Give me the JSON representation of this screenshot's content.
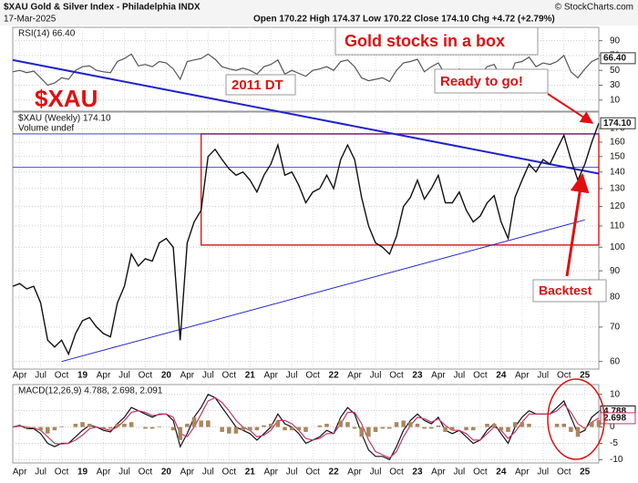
{
  "chart_data": [
    {
      "type": "line",
      "ylim": [
        -5,
        108
      ],
      "yticks": [
        90,
        70,
        50,
        30,
        10
      ],
      "grid": true,
      "last_label": "66.40",
      "series": [
        {
          "name": "RSI(14) 66.40",
          "color": "#555555",
          "values": [
            48,
            50,
            47,
            49,
            40,
            30,
            33,
            40,
            38,
            50,
            55,
            56,
            50,
            48,
            47,
            62,
            66,
            72,
            56,
            58,
            55,
            62,
            60,
            52,
            38,
            62,
            64,
            66,
            72,
            65,
            55,
            52,
            50,
            53,
            50,
            45,
            55,
            58,
            64,
            45,
            50,
            46,
            42,
            50,
            52,
            55,
            50,
            62,
            64,
            55,
            40,
            36,
            38,
            40,
            35,
            50,
            60,
            62,
            65,
            48,
            55,
            60,
            44,
            45,
            52,
            42,
            40,
            45,
            55,
            58,
            40,
            35,
            60,
            62,
            68,
            55,
            60,
            58,
            62,
            70,
            48,
            40,
            52,
            62,
            66.4
          ]
        }
      ]
    },
    {
      "type": "line",
      "log": true,
      "grid": true,
      "title": "$XAU Gold & Silver Index - Philadelphia INDX",
      "date": "17-Mar-2025",
      "quote": "Open 170.22 High 174.37 Low 170.22 Close 174.10 Chg +4.72 (+2.79%)",
      "source": "© StockCharts.com",
      "subtitle": "Volume undef",
      "last_label": "174.10",
      "annotations": [
        "Gold stocks in a box",
        "2011 DT",
        "$XAU",
        "Ready to go!",
        "Backtest"
      ],
      "x": [
        "2018-03",
        "2018-04",
        "2018-05",
        "2018-06",
        "2018-07",
        "2018-08",
        "2018-09",
        "2018-10",
        "2018-11",
        "2018-12",
        "2019-01",
        "2019-02",
        "2019-03",
        "2019-04",
        "2019-05",
        "2019-06",
        "2019-07",
        "2019-08",
        "2019-09",
        "2019-10",
        "2019-11",
        "2019-12",
        "2020-01",
        "2020-02",
        "2020-03",
        "2020-04",
        "2020-05",
        "2020-06",
        "2020-07",
        "2020-08",
        "2020-09",
        "2020-10",
        "2020-11",
        "2020-12",
        "2021-01",
        "2021-02",
        "2021-03",
        "2021-04",
        "2021-05",
        "2021-06",
        "2021-07",
        "2021-08",
        "2021-09",
        "2021-10",
        "2021-11",
        "2021-12",
        "2022-01",
        "2022-02",
        "2022-03",
        "2022-04",
        "2022-05",
        "2022-06",
        "2022-07",
        "2022-08",
        "2022-09",
        "2022-10",
        "2022-11",
        "2022-12",
        "2023-01",
        "2023-02",
        "2023-03",
        "2023-04",
        "2023-05",
        "2023-06",
        "2023-07",
        "2023-08",
        "2023-09",
        "2023-10",
        "2023-11",
        "2023-12",
        "2024-01",
        "2024-02",
        "2024-03",
        "2024-04",
        "2024-05",
        "2024-06",
        "2024-07",
        "2024-08",
        "2024-09",
        "2024-10",
        "2024-11",
        "2024-12",
        "2025-01",
        "2025-02",
        "2025-03"
      ],
      "xlim": [
        "2018-03",
        "2025-03"
      ],
      "xticks": [
        {
          "value": "2018-04",
          "label": "Apr"
        },
        {
          "value": "2018-07",
          "label": "Jul"
        },
        {
          "value": "2018-10",
          "label": "Oct"
        },
        {
          "value": "2019-01",
          "label": "19"
        },
        {
          "value": "2019-04",
          "label": "Apr"
        },
        {
          "value": "2019-07",
          "label": "Jul"
        },
        {
          "value": "2019-10",
          "label": "Oct"
        },
        {
          "value": "2020-01",
          "label": "20"
        },
        {
          "value": "2020-04",
          "label": "Apr"
        },
        {
          "value": "2020-07",
          "label": "Jul"
        },
        {
          "value": "2020-10",
          "label": "Oct"
        },
        {
          "value": "2021-01",
          "label": "21"
        },
        {
          "value": "2021-04",
          "label": "Apr"
        },
        {
          "value": "2021-07",
          "label": "Jul"
        },
        {
          "value": "2021-10",
          "label": "Oct"
        },
        {
          "value": "2022-01",
          "label": "22"
        },
        {
          "value": "2022-04",
          "label": "Apr"
        },
        {
          "value": "2022-07",
          "label": "Jul"
        },
        {
          "value": "2022-10",
          "label": "Oct"
        },
        {
          "value": "2023-01",
          "label": "23"
        },
        {
          "value": "2023-04",
          "label": "Apr"
        },
        {
          "value": "2023-07",
          "label": "Jul"
        },
        {
          "value": "2023-10",
          "label": "Oct"
        },
        {
          "value": "2024-01",
          "label": "24"
        },
        {
          "value": "2024-04",
          "label": "Apr"
        },
        {
          "value": "2024-07",
          "label": "Jul"
        },
        {
          "value": "2024-10",
          "label": "Oct"
        },
        {
          "value": "2025-01",
          "label": "25"
        }
      ],
      "ylim": [
        58,
        183
      ],
      "yticks": [
        170,
        160,
        150,
        140,
        130,
        120,
        110,
        100,
        90,
        80,
        70,
        60
      ],
      "box": {
        "x": [
          "2020-06",
          "2025-03"
        ],
        "y": [
          101,
          166
        ],
        "color": "#dd2222"
      },
      "hlines": [
        166,
        143
      ],
      "trendlines": [
        {
          "x": [
            "2018-03",
            "2025-03"
          ],
          "y": [
            231,
            139
          ],
          "color": "#2222cc"
        },
        {
          "x": [
            "2018-10",
            "2025-01"
          ],
          "y": [
            60,
            113
          ],
          "color": "#2222cc"
        }
      ],
      "series": [
        {
          "name": "$XAU (Weekly) 174.10",
          "color": "#111111",
          "values": [
            84,
            85,
            83,
            84,
            78,
            66,
            64,
            66,
            62,
            68,
            72,
            73,
            70,
            68,
            67,
            78,
            84,
            97,
            92,
            95,
            94,
            102,
            104,
            100,
            66,
            102,
            112,
            118,
            150,
            155,
            148,
            142,
            138,
            140,
            135,
            128,
            138,
            145,
            158,
            138,
            140,
            132,
            122,
            128,
            130,
            138,
            130,
            148,
            158,
            148,
            125,
            110,
            102,
            100,
            97,
            105,
            120,
            125,
            135,
            124,
            130,
            138,
            122,
            122,
            128,
            118,
            112,
            115,
            122,
            126,
            112,
            104,
            125,
            135,
            145,
            140,
            148,
            145,
            155,
            165,
            148,
            135,
            145,
            160,
            174.1
          ]
        }
      ]
    },
    {
      "type": "line",
      "title": "MACD(12,26,9) 4.788, 2.698, 2.091",
      "ylim": [
        -11,
        13
      ],
      "yticks": [
        10,
        5,
        0,
        -5,
        -10
      ],
      "grid": true,
      "series": [
        {
          "color": "#111111",
          "values": [
            0,
            0.5,
            -0.5,
            -0.5,
            -2,
            -5,
            -6,
            -5,
            -5,
            -3,
            -1,
            0.5,
            0,
            -1,
            -1.5,
            1,
            3,
            6,
            5,
            4,
            3,
            4,
            4,
            2,
            -6,
            -2,
            3,
            6,
            10,
            9,
            6,
            3,
            0,
            -1,
            -2,
            -4,
            -2,
            0,
            4,
            1,
            0,
            -2,
            -5,
            -4,
            -3,
            -1,
            -2,
            3,
            6,
            4,
            -2,
            -7,
            -9,
            -9,
            -10,
            -6,
            -1,
            2,
            4,
            2,
            1,
            3,
            -1,
            -2,
            -1,
            -3,
            -5,
            -4,
            -1,
            1,
            -2,
            -5,
            0,
            3,
            5,
            4,
            4,
            4,
            6,
            8,
            3,
            -2,
            -1,
            3,
            4.788
          ]
        },
        {
          "color": "#cc3366",
          "values": [
            0,
            0.3,
            0,
            -0.3,
            -1,
            -3,
            -5,
            -5.2,
            -5,
            -4,
            -2.5,
            -0.5,
            0,
            -0.5,
            -1,
            0,
            2,
            4.5,
            5,
            4.5,
            3.5,
            3.8,
            4,
            3,
            -2,
            -3,
            0,
            4,
            8,
            9,
            7.5,
            5,
            2,
            0,
            -1,
            -3,
            -2.5,
            -1,
            2,
            2,
            1,
            -1,
            -3.5,
            -4,
            -3.5,
            -2,
            -2,
            1,
            4.5,
            4.5,
            1,
            -4,
            -7.5,
            -8.5,
            -9.5,
            -7.5,
            -3,
            0.5,
            3,
            2.5,
            1.5,
            2.5,
            0.5,
            -1,
            -1,
            -2,
            -4,
            -4,
            -2,
            0,
            -1,
            -3.5,
            -1.5,
            1.5,
            4,
            4,
            4,
            4,
            5,
            7,
            4.5,
            1,
            -0.5,
            1.5,
            2.698
          ]
        },
        {
          "type": "bar",
          "color": "#a8875e",
          "values": [
            0,
            0.2,
            -0.5,
            -0.2,
            -1,
            -2,
            -1,
            0.2,
            0,
            1,
            1.5,
            1,
            0,
            -0.5,
            -0.5,
            1,
            1,
            1.5,
            0,
            -0.5,
            -0.5,
            0.2,
            0,
            -1,
            -4,
            1,
            3,
            2,
            2,
            0,
            -1.5,
            -2,
            -2,
            -1,
            -1,
            -1,
            0.5,
            1,
            2,
            -1,
            -1,
            -1,
            -1.5,
            0,
            0.5,
            1,
            0,
            2,
            1.5,
            -0.5,
            -3,
            -3,
            -1.5,
            -0.5,
            -0.5,
            1.5,
            2,
            1.5,
            1,
            -0.5,
            -0.5,
            0.5,
            -1.5,
            -1,
            0,
            -1,
            -1,
            0,
            1,
            1,
            -1,
            -1.5,
            1.5,
            1.5,
            1,
            0,
            0,
            0,
            1,
            1,
            -1.5,
            -3,
            -0.5,
            1.5,
            2.091
          ]
        }
      ]
    }
  ]
}
